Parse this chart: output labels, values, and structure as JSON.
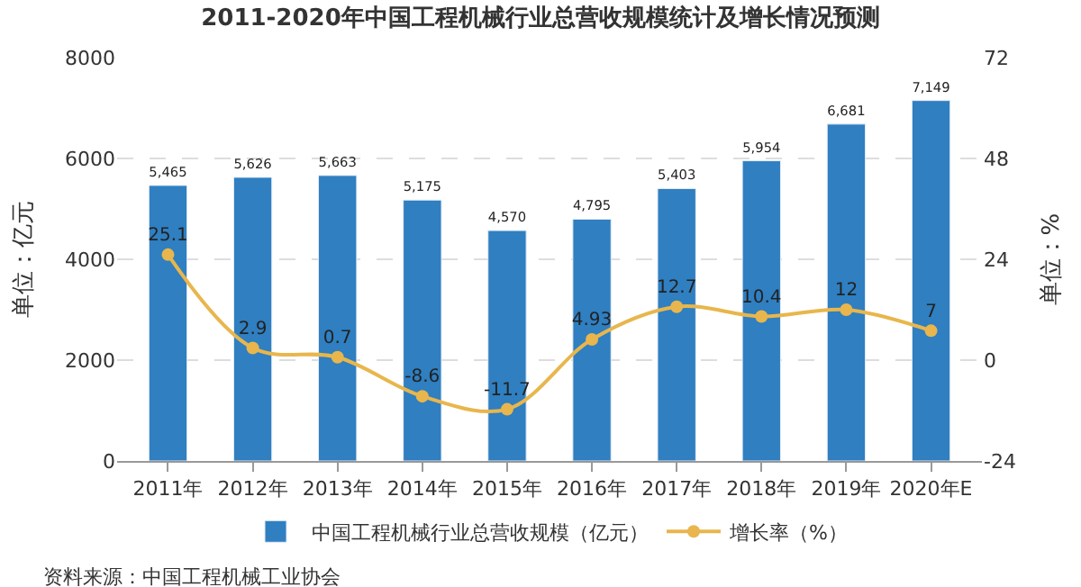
{
  "chart_data": {
    "type": "bar",
    "title": "2011-2020年中国工程机械行业总营收规模统计及增长情况预测",
    "categories": [
      "2011年",
      "2012年",
      "2013年",
      "2014年",
      "2015年",
      "2016年",
      "2017年",
      "2018年",
      "2019年",
      "2020年E"
    ],
    "series": [
      {
        "name": "中国工程机械行业总营收规模（亿元）",
        "color": "#2f7fc1",
        "values": [
          5465,
          5626,
          5663,
          5175,
          4570,
          4795,
          5403,
          5954,
          6681,
          7149
        ],
        "value_labels": [
          "5,465",
          "5,626",
          "5,663",
          "5,175",
          "4,570",
          "4,795",
          "5,403",
          "5,954",
          "6,681",
          "7,149"
        ]
      },
      {
        "name": "增长率（%）",
        "type": "line",
        "axis": "y2",
        "color": "#e8b64c",
        "marker": "circle",
        "values": [
          25.1,
          2.9,
          0.7,
          -8.6,
          -11.7,
          4.93,
          12.7,
          10.4,
          12,
          7
        ]
      }
    ],
    "ylabel": "单位：亿元",
    "y2label": "单位：%",
    "ylim": [
      0,
      8000
    ],
    "yticks": [
      0,
      2000,
      4000,
      6000,
      8000
    ],
    "y2lim": [
      -24,
      72
    ],
    "y2ticks": [
      -24,
      0,
      24,
      48,
      72
    ],
    "grid": "y",
    "legend": "bottom",
    "data_labels": true,
    "annotations": [
      "资料来源：中国工程机械工业协会"
    ]
  }
}
